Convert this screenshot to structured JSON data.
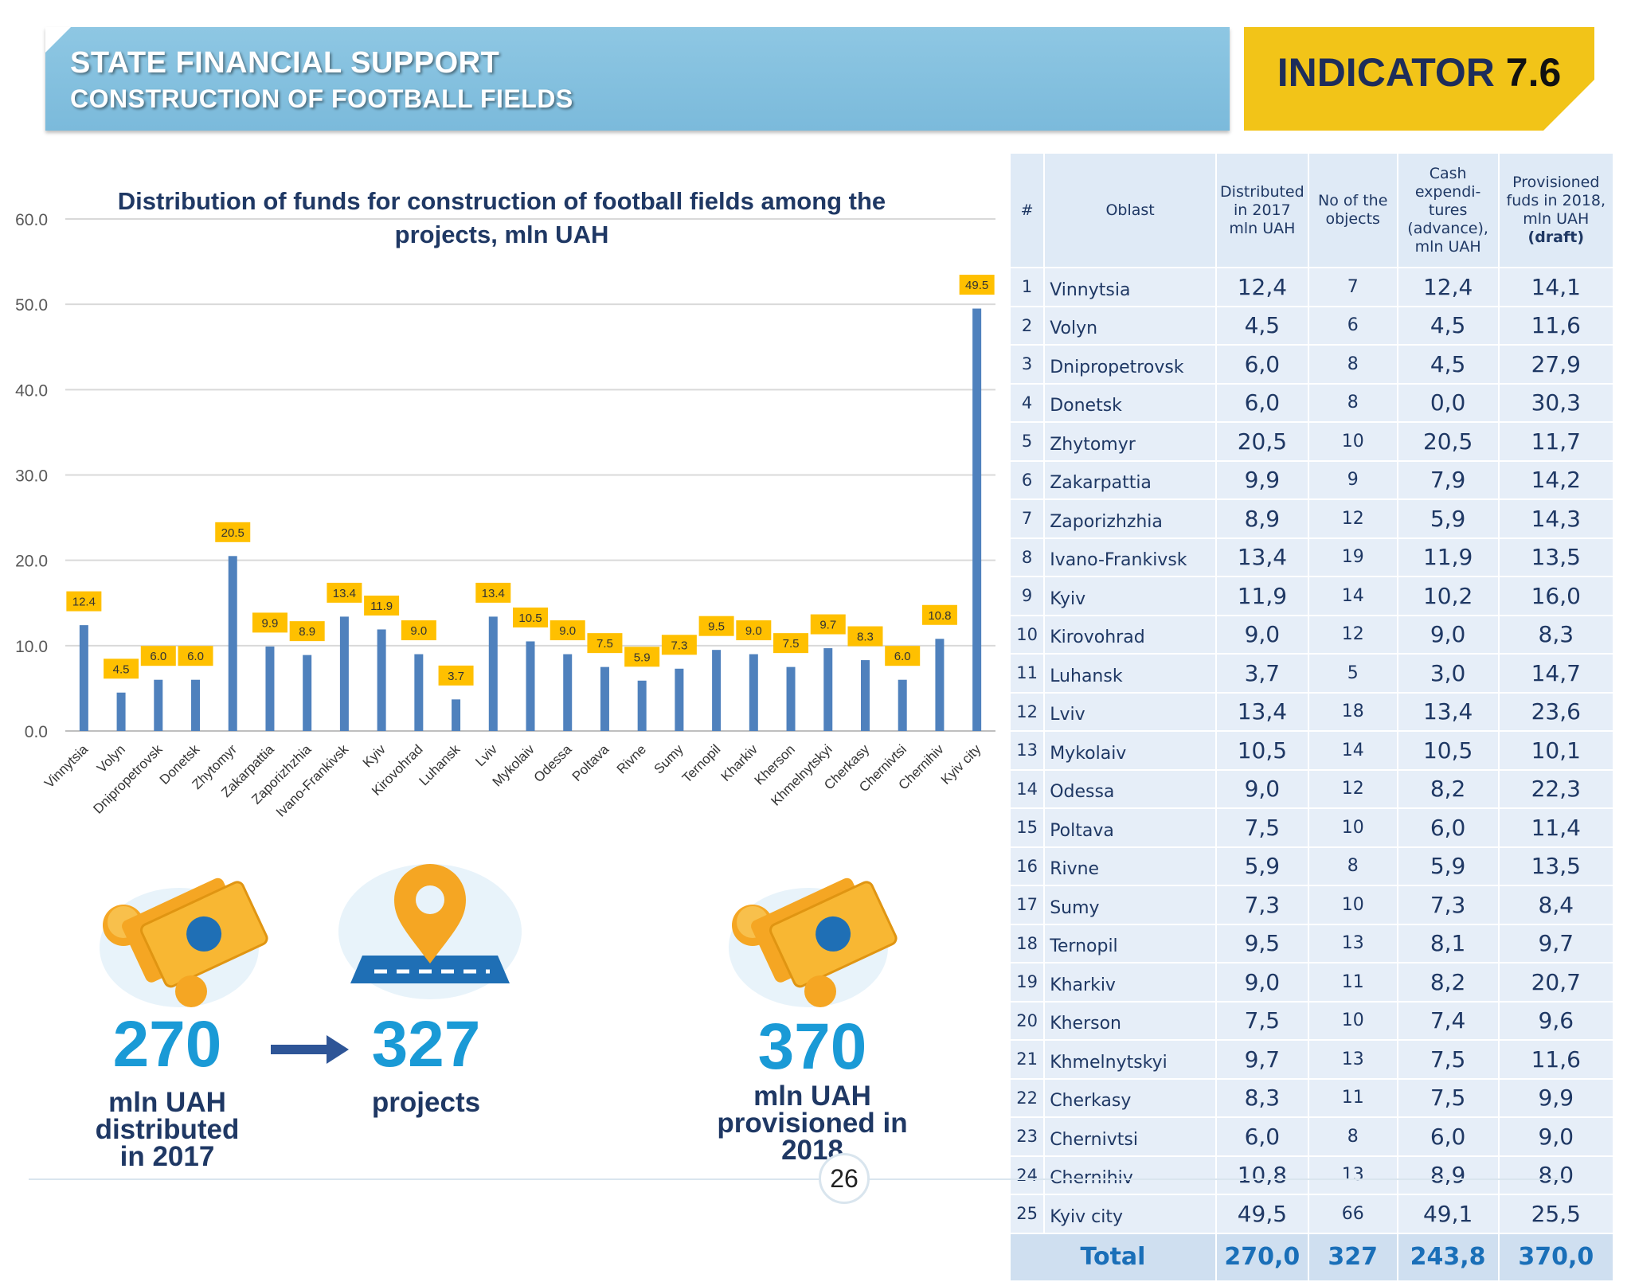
{
  "header": {
    "line1": "STATE FINANCIAL SUPPORT",
    "line2": "CONSTRUCTION OF FOOTBALL FIELDS",
    "indicator_label": "INDICATOR",
    "indicator_number": "7.6"
  },
  "chart_data": {
    "type": "bar",
    "title": "Distribution of funds for construction of football fields among the projects, mln UAH",
    "xlabel": "",
    "ylabel": "",
    "ylim": [
      0,
      60
    ],
    "yticks": [
      "0.0",
      "10.0",
      "20.0",
      "30.0",
      "40.0",
      "50.0",
      "60.0"
    ],
    "grid": true,
    "categories": [
      "Vinnytsia",
      "Volyn",
      "Dnipropetrovsk",
      "Donetsk",
      "Zhytomyr",
      "Zakarpattia",
      "Zaporizhzhia",
      "Ivano-Frankivsk",
      "Kyiv",
      "Kirovohrad",
      "Luhansk",
      "Lviv",
      "Mykolaiv",
      "Odessa",
      "Poltava",
      "Rivne",
      "Sumy",
      "Ternopil",
      "Kharkiv",
      "Kherson",
      "Khmelnytskyi",
      "Cherkasy",
      "Chernivtsi",
      "Chernihiv",
      "Kyiv city"
    ],
    "values": [
      12.4,
      4.5,
      6.0,
      6.0,
      20.5,
      9.9,
      8.9,
      13.4,
      11.9,
      9.0,
      3.7,
      13.4,
      10.5,
      9.0,
      7.5,
      5.9,
      7.3,
      9.5,
      9.0,
      7.5,
      9.7,
      8.3,
      6.0,
      10.8,
      49.5
    ],
    "data_labels": [
      "12.4",
      "4.5",
      "6.0",
      "6.0",
      "20.5",
      "9.9",
      "8.9",
      "13.4",
      "11.9",
      "9.0",
      "3.7",
      "13.4",
      "10.5",
      "9.0",
      "7.5",
      "5.9",
      "7.3",
      "9.5",
      "9.0",
      "7.5",
      "9.7",
      "8.3",
      "6.0",
      "10.8",
      "49.5"
    ],
    "colors": {
      "bar": "#4f81bd",
      "label_bg": "#ffc000",
      "grid": "#d9d9d9"
    }
  },
  "stats": {
    "distributed_value": "270",
    "distributed_caption": [
      "mln UAH",
      "distributed",
      "in 2017"
    ],
    "projects_value": "327",
    "projects_caption": "projects",
    "provisioned_value": "370",
    "provisioned_caption": [
      "mln UAH",
      "provisioned in",
      "2018"
    ],
    "icons": [
      "money-icon",
      "map-pin-icon",
      "money-icon"
    ]
  },
  "table": {
    "headers": [
      "#",
      "Oblast",
      "Distributed in 2017 mln UAH",
      "No of the objects",
      "Cash expendi-tures (advance), mln UAH",
      "Provisioned fuds in 2018, mln UAH"
    ],
    "header_draft": "(draft)",
    "rows": [
      [
        "1",
        "Vinnytsia",
        "12,4",
        "7",
        "12,4",
        "14,1"
      ],
      [
        "2",
        "Volyn",
        "4,5",
        "6",
        "4,5",
        "11,6"
      ],
      [
        "3",
        "Dnipropetrovsk",
        "6,0",
        "8",
        "4,5",
        "27,9"
      ],
      [
        "4",
        "Donetsk",
        "6,0",
        "8",
        "0,0",
        "30,3"
      ],
      [
        "5",
        "Zhytomyr",
        "20,5",
        "10",
        "20,5",
        "11,7"
      ],
      [
        "6",
        "Zakarpattia",
        "9,9",
        "9",
        "7,9",
        "14,2"
      ],
      [
        "7",
        "Zaporizhzhia",
        "8,9",
        "12",
        "5,9",
        "14,3"
      ],
      [
        "8",
        "Ivano-Frankivsk",
        "13,4",
        "19",
        "11,9",
        "13,5"
      ],
      [
        "9",
        "Kyiv",
        "11,9",
        "14",
        "10,2",
        "16,0"
      ],
      [
        "10",
        "Kirovohrad",
        "9,0",
        "12",
        "9,0",
        "8,3"
      ],
      [
        "11",
        "Luhansk",
        "3,7",
        "5",
        "3,0",
        "14,7"
      ],
      [
        "12",
        "Lviv",
        "13,4",
        "18",
        "13,4",
        "23,6"
      ],
      [
        "13",
        "Mykolaiv",
        "10,5",
        "14",
        "10,5",
        "10,1"
      ],
      [
        "14",
        "Odessa",
        "9,0",
        "12",
        "8,2",
        "22,3"
      ],
      [
        "15",
        "Poltava",
        "7,5",
        "10",
        "6,0",
        "11,4"
      ],
      [
        "16",
        "Rivne",
        "5,9",
        "8",
        "5,9",
        "13,5"
      ],
      [
        "17",
        "Sumy",
        "7,3",
        "10",
        "7,3",
        "8,4"
      ],
      [
        "18",
        "Ternopil",
        "9,5",
        "13",
        "8,1",
        "9,7"
      ],
      [
        "19",
        "Kharkiv",
        "9,0",
        "11",
        "8,2",
        "20,7"
      ],
      [
        "20",
        "Kherson",
        "7,5",
        "10",
        "7,4",
        "9,6"
      ],
      [
        "21",
        "Khmelnytskyi",
        "9,7",
        "13",
        "7,5",
        "11,6"
      ],
      [
        "22",
        "Cherkasy",
        "8,3",
        "11",
        "7,5",
        "9,9"
      ],
      [
        "23",
        "Chernivtsi",
        "6,0",
        "8",
        "6,0",
        "9,0"
      ],
      [
        "24",
        "Chernihiv",
        "10,8",
        "13",
        "8,9",
        "8,0"
      ],
      [
        "25",
        "Kyiv city",
        "49,5",
        "66",
        "49,1",
        "25,5"
      ]
    ],
    "total": [
      "Total",
      "270,0",
      "327",
      "243,8",
      "370,0"
    ]
  },
  "page_number": "26"
}
